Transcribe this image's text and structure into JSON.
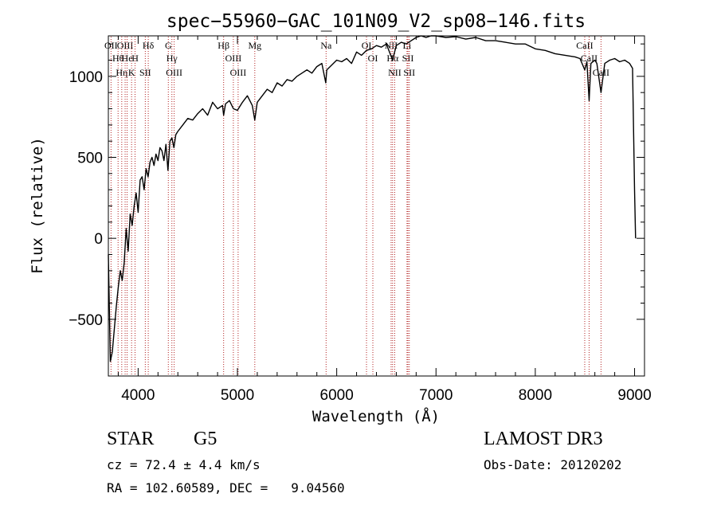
{
  "chart_data": {
    "type": "line",
    "title": "spec−55960−GAC_101N09_V2_sp08−146.fits",
    "xlabel": "Wavelength (Å)",
    "ylabel": "Flux (relative)",
    "xlim": [
      3700,
      9100
    ],
    "ylim": [
      -850,
      1250
    ],
    "xticks": [
      4000,
      5000,
      6000,
      7000,
      8000,
      9000
    ],
    "xtick_labels": [
      "4000",
      "5000",
      "6000",
      "7000",
      "8000",
      "9000"
    ],
    "yticks": [
      -500,
      0,
      500,
      1000
    ],
    "ytick_labels": [
      "−500",
      "0",
      "500",
      "1000"
    ],
    "series": [
      {
        "name": "spectrum",
        "x": [
          3700,
          3720,
          3740,
          3760,
          3780,
          3800,
          3820,
          3840,
          3860,
          3880,
          3900,
          3920,
          3940,
          3960,
          3980,
          4000,
          4020,
          4040,
          4060,
          4080,
          4100,
          4120,
          4140,
          4160,
          4180,
          4200,
          4220,
          4240,
          4260,
          4280,
          4300,
          4320,
          4340,
          4360,
          4380,
          4400,
          4450,
          4500,
          4550,
          4600,
          4650,
          4700,
          4750,
          4800,
          4850,
          4861,
          4880,
          4920,
          4960,
          5000,
          5050,
          5100,
          5150,
          5175,
          5200,
          5250,
          5300,
          5350,
          5400,
          5450,
          5500,
          5550,
          5600,
          5650,
          5700,
          5750,
          5800,
          5850,
          5890,
          5900,
          5950,
          6000,
          6050,
          6100,
          6150,
          6200,
          6250,
          6300,
          6350,
          6400,
          6450,
          6500,
          6563,
          6600,
          6650,
          6700,
          6750,
          6800,
          6850,
          6900,
          6950,
          7000,
          7100,
          7200,
          7300,
          7400,
          7500,
          7600,
          7700,
          7800,
          7900,
          8000,
          8100,
          8200,
          8300,
          8400,
          8450,
          8498,
          8520,
          8542,
          8560,
          8600,
          8620,
          8662,
          8700,
          8750,
          8800,
          8850,
          8900,
          8950,
          8980,
          9000,
          9010
        ],
        "y": [
          -100,
          -760,
          -700,
          -560,
          -420,
          -300,
          -200,
          -260,
          -150,
          60,
          -80,
          150,
          80,
          200,
          280,
          160,
          360,
          380,
          300,
          430,
          380,
          470,
          500,
          450,
          520,
          480,
          560,
          540,
          480,
          580,
          420,
          600,
          620,
          560,
          640,
          660,
          700,
          740,
          730,
          770,
          800,
          760,
          840,
          800,
          820,
          760,
          830,
          850,
          800,
          790,
          840,
          880,
          820,
          730,
          840,
          880,
          920,
          900,
          960,
          940,
          980,
          970,
          1000,
          1020,
          1040,
          1020,
          1060,
          1080,
          960,
          1040,
          1070,
          1100,
          1090,
          1110,
          1080,
          1150,
          1130,
          1160,
          1170,
          1190,
          1180,
          1200,
          1100,
          1190,
          1210,
          1200,
          1220,
          1240,
          1250,
          1240,
          1250,
          1250,
          1240,
          1245,
          1230,
          1240,
          1220,
          1220,
          1210,
          1200,
          1200,
          1170,
          1160,
          1140,
          1130,
          1120,
          1110,
          1040,
          1090,
          850,
          1080,
          1100,
          1080,
          900,
          1080,
          1100,
          1110,
          1090,
          1100,
          1080,
          1050,
          300,
          0
        ]
      }
    ],
    "lines": [
      {
        "label": "Hθ",
        "x": 3798
      },
      {
        "label": "OII",
        "x": 3727
      },
      {
        "label": "Hη",
        "x": 3835
      },
      {
        "label": "OIII",
        "x": 3869
      },
      {
        "label": "He",
        "x": 3889
      },
      {
        "label": "K",
        "x": 3934
      },
      {
        "label": "H",
        "x": 3969
      },
      {
        "label": "Hδ",
        "x": 4102
      },
      {
        "label": "SII",
        "x": 4072
      },
      {
        "label": "OIII",
        "x": 4363
      },
      {
        "label": "Hγ",
        "x": 4340
      },
      {
        "label": "G",
        "x": 4304
      },
      {
        "label": "Hβ",
        "x": 4861
      },
      {
        "label": "OIII",
        "x": 5007
      },
      {
        "label": "OIII",
        "x": 4959
      },
      {
        "label": "Mg",
        "x": 5175
      },
      {
        "label": "Na",
        "x": 5893
      },
      {
        "label": "OI",
        "x": 6300
      },
      {
        "label": "OI",
        "x": 6364
      },
      {
        "label": "Hα",
        "x": 6563
      },
      {
        "label": "SII",
        "x": 6717
      },
      {
        "label": "NII",
        "x": 6584
      },
      {
        "label": "Li",
        "x": 6708
      },
      {
        "label": "NII",
        "x": 6548
      },
      {
        "label": "SII",
        "x": 6731
      },
      {
        "label": "CaII",
        "x": 8542
      },
      {
        "label": "CaII",
        "x": 8498
      },
      {
        "label": "CaII",
        "x": 8662
      }
    ]
  },
  "info": {
    "object_class": "STAR",
    "subclass": "G5",
    "survey": "LAMOST DR3",
    "cz": "cz = 72.4 ± 4.4 km/s",
    "obs_date": "Obs-Date: 20120202",
    "coords": "RA = 102.60589, DEC =   9.04560"
  }
}
